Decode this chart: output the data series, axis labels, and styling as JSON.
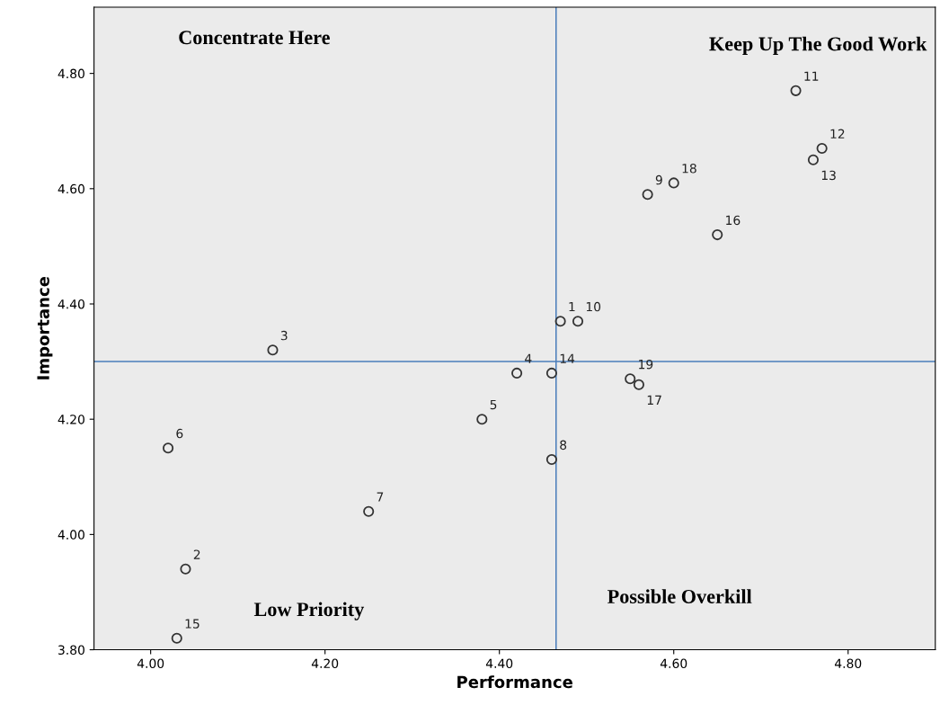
{
  "chart_data": {
    "type": "scatter",
    "xlabel": "Performance",
    "ylabel": "Importance",
    "x": [
      4.47,
      4.04,
      4.14,
      4.42,
      4.38,
      4.02,
      4.25,
      4.46,
      4.57,
      4.49,
      4.74,
      4.77,
      4.76,
      4.46,
      4.03,
      4.65,
      4.56,
      4.6,
      4.55
    ],
    "values": [
      4.37,
      3.94,
      4.32,
      4.28,
      4.2,
      4.15,
      4.04,
      4.13,
      4.59,
      4.37,
      4.77,
      4.67,
      4.65,
      4.28,
      3.82,
      4.52,
      4.26,
      4.61,
      4.27
    ],
    "color": "#333333",
    "marker": "circle",
    "grid": false,
    "xlim": [
      3.935,
      4.9
    ],
    "ylim": [
      3.8,
      4.915
    ],
    "xticks": [
      {
        "value": 4.0,
        "label": "4.00"
      },
      {
        "value": 4.2,
        "label": "4.20"
      },
      {
        "value": 4.4,
        "label": "4.40"
      },
      {
        "value": 4.6,
        "label": "4.60"
      },
      {
        "value": 4.8,
        "label": "4.80"
      }
    ],
    "yticks": [
      {
        "value": 3.8,
        "label": "3.80"
      },
      {
        "value": 4.0,
        "label": "4.00"
      },
      {
        "value": 4.2,
        "label": "4.20"
      },
      {
        "value": 4.4,
        "label": "4.40"
      },
      {
        "value": 4.6,
        "label": "4.60"
      },
      {
        "value": 4.8,
        "label": "4.80"
      }
    ],
    "ref_lines": [
      {
        "axis": "x",
        "value": 4.465,
        "color": "#4a7ebb"
      },
      {
        "axis": "y",
        "value": 4.3,
        "color": "#4a7ebb"
      }
    ],
    "annotations": [
      {
        "text": "1",
        "x": 4.47,
        "y": 4.37
      },
      {
        "text": "2",
        "x": 4.04,
        "y": 3.94
      },
      {
        "text": "3",
        "x": 4.14,
        "y": 4.32
      },
      {
        "text": "4",
        "x": 4.42,
        "y": 4.28
      },
      {
        "text": "5",
        "x": 4.38,
        "y": 4.2
      },
      {
        "text": "6",
        "x": 4.02,
        "y": 4.15
      },
      {
        "text": "7",
        "x": 4.25,
        "y": 4.04
      },
      {
        "text": "8",
        "x": 4.46,
        "y": 4.13
      },
      {
        "text": "9",
        "x": 4.57,
        "y": 4.59
      },
      {
        "text": "10",
        "x": 4.49,
        "y": 4.37
      },
      {
        "text": "11",
        "x": 4.74,
        "y": 4.77
      },
      {
        "text": "12",
        "x": 4.77,
        "y": 4.67
      },
      {
        "text": "13",
        "x": 4.76,
        "y": 4.65
      },
      {
        "text": "14",
        "x": 4.46,
        "y": 4.28
      },
      {
        "text": "15",
        "x": 4.03,
        "y": 3.82
      },
      {
        "text": "16",
        "x": 4.65,
        "y": 4.52
      },
      {
        "text": "17",
        "x": 4.56,
        "y": 4.26
      },
      {
        "text": "18",
        "x": 4.6,
        "y": 4.61
      },
      {
        "text": "19",
        "x": 4.55,
        "y": 4.27
      },
      "Concentrate Here",
      "Keep Up The Good Work",
      "Low Priority",
      "Possible Overkill"
    ]
  }
}
